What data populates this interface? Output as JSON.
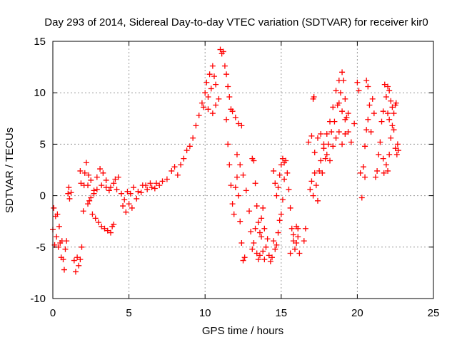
{
  "chart_data": {
    "type": "scatter",
    "title": "Day 293 of 2014, Sidereal Day-to-day VTEC variation (SDTVAR) for receiver kir0",
    "xlabel": "GPS time / hours",
    "ylabel": "SDTVAR / TECUs",
    "xlim": [
      0,
      25
    ],
    "ylim": [
      -10,
      15
    ],
    "xticks": [
      0,
      5,
      10,
      15,
      20,
      25
    ],
    "yticks": [
      -10,
      -5,
      0,
      5,
      10,
      15
    ],
    "grid": true,
    "marker": "+",
    "color": "#ff0000",
    "series": [
      {
        "name": "kir0",
        "points": [
          [
            0.0,
            -3.3
          ],
          [
            0.06,
            -1.2
          ],
          [
            0.12,
            -4.8
          ],
          [
            0.18,
            -2.0
          ],
          [
            0.24,
            -4.0
          ],
          [
            0.3,
            -1.8
          ],
          [
            0.36,
            -5.0
          ],
          [
            0.42,
            -3.0
          ],
          [
            0.48,
            -4.6
          ],
          [
            0.55,
            -6.0
          ],
          [
            0.6,
            -4.4
          ],
          [
            0.68,
            -6.2
          ],
          [
            0.75,
            -7.2
          ],
          [
            0.82,
            -5.2
          ],
          [
            0.9,
            -4.4
          ],
          [
            1.0,
            0.2
          ],
          [
            1.05,
            0.8
          ],
          [
            1.1,
            -0.3
          ],
          [
            1.2,
            0.3
          ],
          [
            1.4,
            -6.3
          ],
          [
            1.5,
            -7.4
          ],
          [
            1.6,
            -6.0
          ],
          [
            1.7,
            -6.8
          ],
          [
            1.8,
            -6.2
          ],
          [
            1.9,
            -5.0
          ],
          [
            2.0,
            -1.5
          ],
          [
            2.05,
            1.0
          ],
          [
            2.1,
            2.2
          ],
          [
            2.2,
            3.2
          ],
          [
            2.3,
            1.0
          ],
          [
            2.35,
            2.0
          ],
          [
            1.8,
            2.4
          ],
          [
            1.85,
            1.2
          ],
          [
            2.4,
            -0.5
          ],
          [
            2.5,
            1.5
          ],
          [
            2.6,
            -1.8
          ],
          [
            2.7,
            0.5
          ],
          [
            2.8,
            -2.2
          ],
          [
            2.9,
            1.8
          ],
          [
            3.0,
            -2.6
          ],
          [
            3.1,
            2.6
          ],
          [
            3.2,
            -3.0
          ],
          [
            3.3,
            2.2
          ],
          [
            3.4,
            -3.2
          ],
          [
            3.5,
            1.5
          ],
          [
            3.6,
            -3.4
          ],
          [
            3.7,
            0.5
          ],
          [
            3.8,
            -3.6
          ],
          [
            3.9,
            -3.0
          ],
          [
            4.0,
            -2.8
          ],
          [
            2.3,
            -0.8
          ],
          [
            2.5,
            -0.2
          ],
          [
            2.7,
            0.2
          ],
          [
            2.9,
            0.6
          ],
          [
            3.2,
            1.0
          ],
          [
            3.5,
            0.8
          ],
          [
            3.8,
            0.8
          ],
          [
            4.0,
            1.2
          ],
          [
            4.2,
            0.6
          ],
          [
            4.5,
            0.2
          ],
          [
            4.7,
            -0.4
          ],
          [
            4.9,
            0.4
          ],
          [
            5.1,
            0.2
          ],
          [
            5.3,
            0.8
          ],
          [
            5.6,
            0.4
          ],
          [
            5.9,
            1.0
          ],
          [
            6.2,
            0.6
          ],
          [
            6.5,
            0.8
          ],
          [
            6.8,
            1.2
          ],
          [
            7.0,
            1.0
          ],
          [
            4.1,
            1.6
          ],
          [
            4.3,
            1.8
          ],
          [
            4.6,
            -1.0
          ],
          [
            4.8,
            -1.6
          ],
          [
            5.0,
            -0.8
          ],
          [
            5.2,
            -1.2
          ],
          [
            5.5,
            -0.3
          ],
          [
            5.8,
            0.3
          ],
          [
            6.1,
            1.0
          ],
          [
            6.4,
            1.2
          ],
          [
            6.7,
            0.7
          ],
          [
            7.2,
            1.4
          ],
          [
            7.5,
            1.6
          ],
          [
            7.8,
            2.4
          ],
          [
            8.0,
            2.8
          ],
          [
            8.2,
            2.0
          ],
          [
            8.4,
            3.0
          ],
          [
            8.6,
            3.6
          ],
          [
            8.8,
            4.4
          ],
          [
            9.0,
            4.8
          ],
          [
            9.2,
            5.6
          ],
          [
            9.4,
            6.8
          ],
          [
            9.6,
            7.8
          ],
          [
            9.8,
            9.0
          ],
          [
            10.0,
            10.0
          ],
          [
            10.1,
            11.0
          ],
          [
            10.2,
            9.6
          ],
          [
            10.3,
            11.8
          ],
          [
            10.4,
            10.4
          ],
          [
            10.5,
            12.6
          ],
          [
            10.6,
            11.6
          ],
          [
            10.7,
            10.8
          ],
          [
            9.9,
            8.6
          ],
          [
            10.2,
            8.4
          ],
          [
            10.5,
            8.0
          ],
          [
            10.7,
            8.8
          ],
          [
            10.9,
            9.4
          ],
          [
            11.0,
            14.2
          ],
          [
            11.1,
            13.8
          ],
          [
            11.2,
            14.0
          ],
          [
            11.3,
            12.6
          ],
          [
            11.4,
            11.8
          ],
          [
            11.5,
            10.6
          ],
          [
            11.6,
            9.6
          ],
          [
            11.7,
            8.4
          ],
          [
            11.8,
            8.2
          ],
          [
            12.0,
            7.6
          ],
          [
            12.2,
            7.0
          ],
          [
            12.4,
            6.8
          ],
          [
            11.4,
            7.4
          ],
          [
            11.5,
            5.0
          ],
          [
            11.6,
            3.0
          ],
          [
            11.7,
            1.0
          ],
          [
            11.8,
            -0.8
          ],
          [
            11.9,
            -1.8
          ],
          [
            12.0,
            0.8
          ],
          [
            12.1,
            1.8
          ],
          [
            12.2,
            0.0
          ],
          [
            12.3,
            -2.5
          ],
          [
            12.4,
            -4.6
          ],
          [
            12.5,
            -6.3
          ],
          [
            12.6,
            -6.0
          ],
          [
            12.1,
            4.0
          ],
          [
            12.3,
            3.0
          ],
          [
            12.5,
            2.0
          ],
          [
            12.7,
            0.5
          ],
          [
            12.9,
            -1.5
          ],
          [
            13.0,
            -3.5
          ],
          [
            13.1,
            -5.2
          ],
          [
            13.2,
            -4.6
          ],
          [
            13.3,
            -3.2
          ],
          [
            13.4,
            -5.6
          ],
          [
            13.5,
            -6.2
          ],
          [
            13.6,
            -5.8
          ],
          [
            13.7,
            -4.0
          ],
          [
            13.8,
            -5.4
          ],
          [
            13.9,
            -6.2
          ],
          [
            13.1,
            3.6
          ],
          [
            13.2,
            3.4
          ],
          [
            13.3,
            1.2
          ],
          [
            13.4,
            -1.0
          ],
          [
            13.5,
            -2.6
          ],
          [
            13.6,
            -3.6
          ],
          [
            13.7,
            -2.2
          ],
          [
            13.8,
            -1.2
          ],
          [
            13.9,
            -3.2
          ],
          [
            14.0,
            -5.0
          ],
          [
            14.1,
            -4.2
          ],
          [
            14.2,
            -5.8
          ],
          [
            14.3,
            -6.4
          ],
          [
            14.4,
            -6.0
          ],
          [
            14.5,
            -4.4
          ],
          [
            14.6,
            -5.2
          ],
          [
            14.7,
            -4.8
          ],
          [
            14.8,
            -3.6
          ],
          [
            14.9,
            -2.4
          ],
          [
            15.0,
            -1.8
          ],
          [
            15.1,
            -0.4
          ],
          [
            15.2,
            1.6
          ],
          [
            15.3,
            3.4
          ],
          [
            15.4,
            2.2
          ],
          [
            15.5,
            0.6
          ],
          [
            15.6,
            -1.2
          ],
          [
            15.7,
            -3.2
          ],
          [
            15.8,
            -4.4
          ],
          [
            15.9,
            -5.2
          ],
          [
            16.0,
            -4.6
          ],
          [
            14.5,
            2.4
          ],
          [
            14.6,
            1.2
          ],
          [
            14.7,
            0.0
          ],
          [
            14.8,
            0.8
          ],
          [
            14.9,
            2.0
          ],
          [
            15.0,
            3.0
          ],
          [
            15.1,
            3.6
          ],
          [
            15.2,
            3.2
          ],
          [
            15.6,
            -5.6
          ],
          [
            15.8,
            -3.8
          ],
          [
            16.0,
            -3.0
          ],
          [
            16.1,
            -4.0
          ],
          [
            16.2,
            -5.6
          ],
          [
            16.1,
            -3.2
          ],
          [
            16.5,
            -4.4
          ],
          [
            16.6,
            -3.2
          ],
          [
            16.9,
            0.6
          ],
          [
            17.0,
            1.4
          ],
          [
            17.1,
            0.0
          ],
          [
            17.2,
            2.2
          ],
          [
            17.3,
            1.0
          ],
          [
            17.4,
            -0.5
          ],
          [
            17.5,
            2.4
          ],
          [
            17.6,
            3.4
          ],
          [
            17.7,
            2.2
          ],
          [
            17.8,
            4.6
          ],
          [
            17.9,
            3.6
          ],
          [
            18.0,
            6.0
          ],
          [
            18.1,
            5.0
          ],
          [
            18.2,
            7.2
          ],
          [
            18.3,
            6.2
          ],
          [
            18.4,
            8.6
          ],
          [
            18.5,
            7.2
          ],
          [
            18.6,
            10.2
          ],
          [
            18.7,
            8.8
          ],
          [
            18.8,
            11.2
          ],
          [
            18.9,
            10.0
          ],
          [
            19.0,
            12.0
          ],
          [
            19.1,
            11.2
          ],
          [
            19.2,
            9.4
          ],
          [
            19.3,
            7.6
          ],
          [
            16.8,
            5.2
          ],
          [
            17.0,
            5.8
          ],
          [
            17.2,
            4.2
          ],
          [
            17.4,
            5.6
          ],
          [
            17.6,
            6.0
          ],
          [
            17.8,
            5.0
          ],
          [
            18.0,
            4.0
          ],
          [
            18.2,
            3.4
          ],
          [
            18.4,
            4.8
          ],
          [
            18.6,
            5.6
          ],
          [
            18.8,
            6.2
          ],
          [
            19.0,
            5.0
          ],
          [
            19.2,
            6.0
          ],
          [
            19.4,
            8.0
          ],
          [
            17.1,
            9.4
          ],
          [
            17.15,
            9.6
          ],
          [
            18.8,
            9.0
          ],
          [
            19.0,
            8.2
          ],
          [
            19.2,
            7.4
          ],
          [
            19.4,
            6.2
          ],
          [
            19.6,
            5.2
          ],
          [
            19.8,
            7.0
          ],
          [
            20.0,
            11.0
          ],
          [
            20.1,
            10.2
          ],
          [
            20.2,
            2.2
          ],
          [
            20.3,
            -0.2
          ],
          [
            20.4,
            2.8
          ],
          [
            20.5,
            1.8
          ],
          [
            20.6,
            11.2
          ],
          [
            20.7,
            10.6
          ],
          [
            20.5,
            4.8
          ],
          [
            20.6,
            6.4
          ],
          [
            20.7,
            7.4
          ],
          [
            20.8,
            8.8
          ],
          [
            20.9,
            6.2
          ],
          [
            21.0,
            9.4
          ],
          [
            21.1,
            8.0
          ],
          [
            21.2,
            1.8
          ],
          [
            21.3,
            2.4
          ],
          [
            21.4,
            4.0
          ],
          [
            21.5,
            5.2
          ],
          [
            21.6,
            7.2
          ],
          [
            21.7,
            8.2
          ],
          [
            21.8,
            10.8
          ],
          [
            21.9,
            9.6
          ],
          [
            22.0,
            8.0
          ],
          [
            22.1,
            7.4
          ],
          [
            22.2,
            9.2
          ],
          [
            22.3,
            8.6
          ],
          [
            22.4,
            6.4
          ],
          [
            22.5,
            4.6
          ],
          [
            22.6,
            4.0
          ],
          [
            22.65,
            5.0
          ],
          [
            22.7,
            4.4
          ],
          [
            21.9,
            3.0
          ],
          [
            22.0,
            2.4
          ],
          [
            22.1,
            4.0
          ],
          [
            22.2,
            5.6
          ],
          [
            22.3,
            6.8
          ],
          [
            22.4,
            8.0
          ],
          [
            22.5,
            8.8
          ],
          [
            22.55,
            9.0
          ],
          [
            21.7,
            3.6
          ],
          [
            21.75,
            2.2
          ],
          [
            22.0,
            10.6
          ],
          [
            22.1,
            10.2
          ]
        ]
      }
    ]
  }
}
